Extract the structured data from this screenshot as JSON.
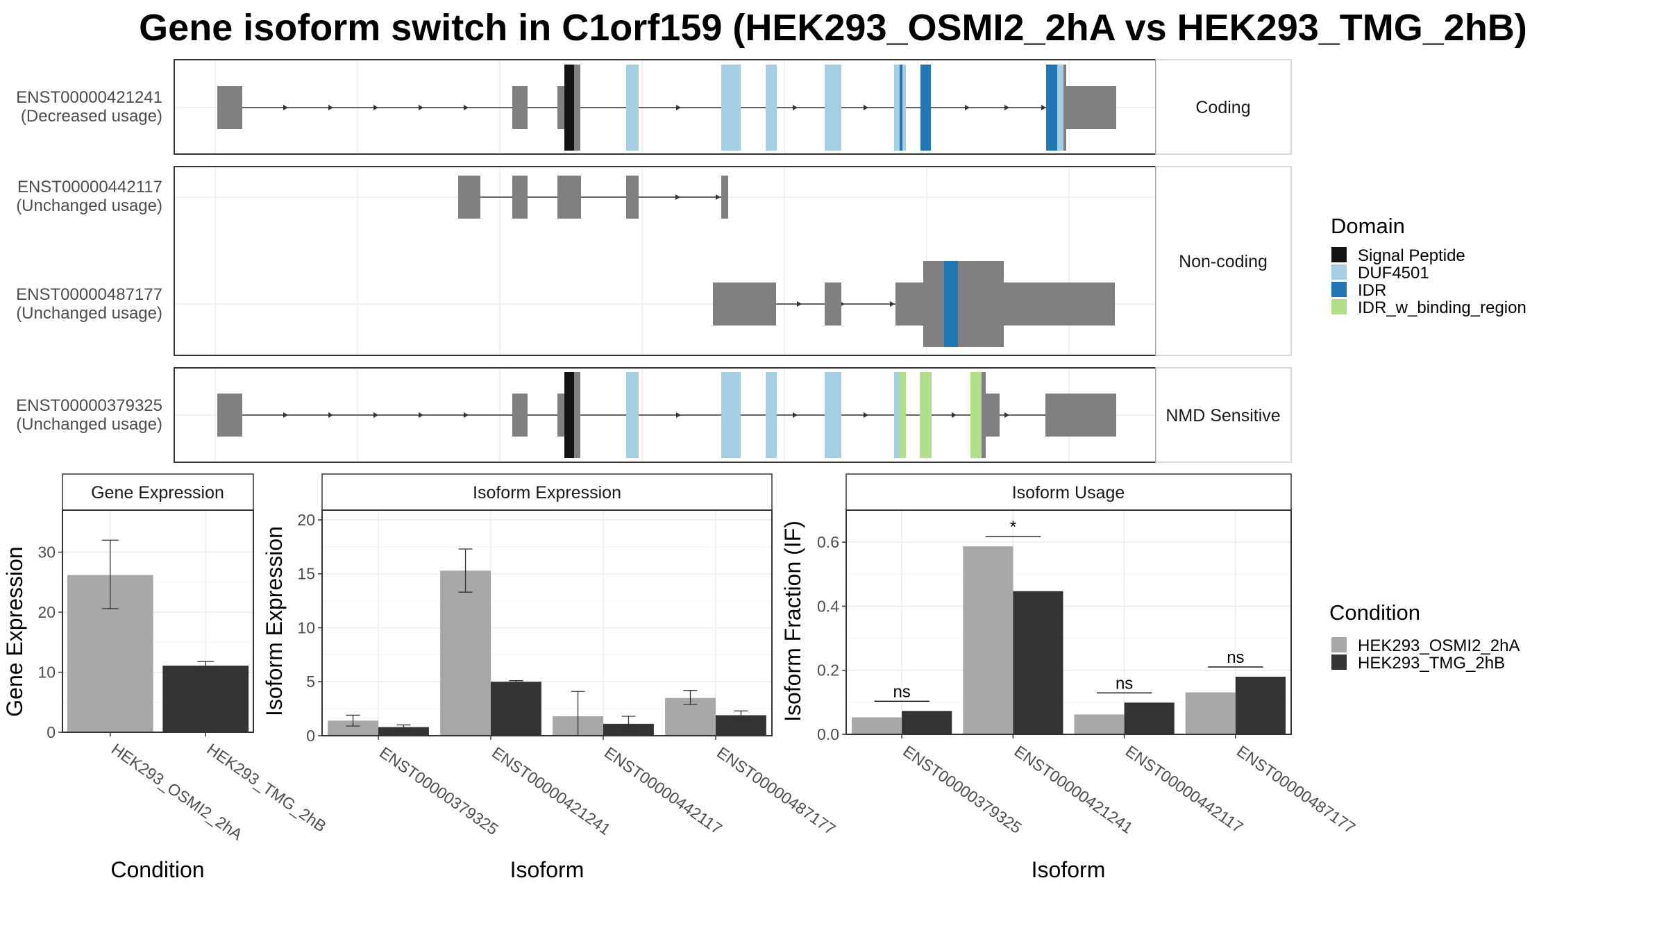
{
  "title": "Gene isoform switch in C1orf159 (HEK293_OSMI2_2hA vs HEK293_TMG_2hB)",
  "colors": {
    "exon": "#808080",
    "signal_peptide": "#141414",
    "duf4501": "#a6cee3",
    "idr": "#1f78b4",
    "idr_binding": "#b2df8a",
    "cond_a": "#a8a8a8",
    "cond_b": "#333333"
  },
  "structure": {
    "facets": [
      {
        "label": "Coding",
        "rows": [
          {
            "id": "ENST00000421241",
            "usage": "(Decreased usage)"
          }
        ]
      },
      {
        "label": "Non-coding",
        "rows": [
          {
            "id": "ENST00000442117",
            "usage": "(Unchanged usage)"
          },
          {
            "id": "ENST00000487177",
            "usage": "(Unchanged usage)"
          }
        ]
      },
      {
        "label": "NMD Sensitive",
        "rows": [
          {
            "id": "ENST00000379325",
            "usage": "(Unchanged usage)"
          }
        ]
      }
    ]
  },
  "legend_domain": {
    "title": "Domain",
    "items": [
      {
        "label": "Signal Peptide",
        "color": "#141414"
      },
      {
        "label": "DUF4501",
        "color": "#a6cee3"
      },
      {
        "label": "IDR",
        "color": "#1f78b4"
      },
      {
        "label": "IDR_w_binding_region",
        "color": "#b2df8a"
      }
    ]
  },
  "legend_condition": {
    "title": "Condition",
    "items": [
      {
        "label": "HEK293_OSMI2_2hA",
        "color": "#a8a8a8"
      },
      {
        "label": "HEK293_TMG_2hB",
        "color": "#333333"
      }
    ]
  },
  "chart_data": [
    {
      "type": "bar",
      "strip": "Gene Expression",
      "xlabel": "Condition",
      "ylabel": "Gene Expression",
      "categories": [
        "HEK293_OSMI2_2hA",
        "HEK293_TMG_2hB"
      ],
      "ylim": [
        0,
        37
      ],
      "yticks": [
        0,
        10,
        20,
        30
      ],
      "values": [
        26.2,
        11.1
      ],
      "err_low": [
        20.6,
        10.4
      ],
      "err_high": [
        32.0,
        11.8
      ]
    },
    {
      "type": "bar",
      "strip": "Isoform Expression",
      "xlabel": "Isoform",
      "ylabel": "Isoform Expression",
      "categories": [
        "ENST00000379325",
        "ENST00000421241",
        "ENST00000442117",
        "ENST00000487177"
      ],
      "ylim": [
        0,
        20.9
      ],
      "yticks": [
        0,
        5,
        10,
        15,
        20
      ],
      "series": [
        {
          "name": "HEK293_OSMI2_2hA",
          "values": [
            1.4,
            15.3,
            1.8,
            3.5
          ],
          "err_low": [
            0.9,
            13.3,
            0.0,
            2.9
          ],
          "err_high": [
            1.9,
            17.3,
            4.1,
            4.2
          ]
        },
        {
          "name": "HEK293_TMG_2hB",
          "values": [
            0.8,
            5.0,
            1.1,
            1.9
          ],
          "err_low": [
            0.6,
            4.9,
            0.5,
            1.6
          ],
          "err_high": [
            1.0,
            5.1,
            1.8,
            2.3
          ]
        }
      ]
    },
    {
      "type": "bar",
      "strip": "Isoform Usage",
      "xlabel": "Isoform",
      "ylabel": "Isoform Fraction (IF)",
      "categories": [
        "ENST00000379325",
        "ENST00000421241",
        "ENST00000442117",
        "ENST00000487177"
      ],
      "ylim": [
        0,
        0.7
      ],
      "yticks": [
        "0.0",
        "0.2",
        "0.4",
        "0.6"
      ],
      "series": [
        {
          "name": "HEK293_OSMI2_2hA",
          "values": [
            0.053,
            0.587,
            0.062,
            0.131
          ]
        },
        {
          "name": "HEK293_TMG_2hB",
          "values": [
            0.073,
            0.447,
            0.099,
            0.18
          ]
        }
      ],
      "significance": [
        "ns",
        "*",
        "ns",
        "ns"
      ]
    }
  ]
}
